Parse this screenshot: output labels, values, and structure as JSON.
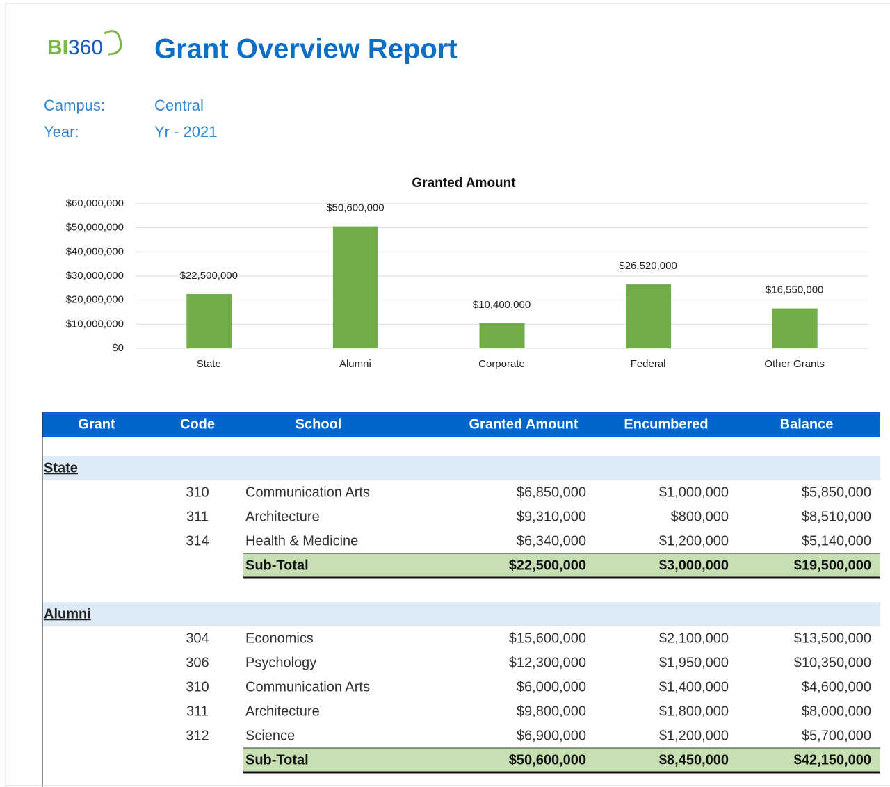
{
  "logo": [
    "BI",
    "360"
  ],
  "title": "Grant Overview Report",
  "filters": [
    {
      "label": "Campus:",
      "value": "Central"
    },
    {
      "label": "Year:",
      "value": "Yr - 2021"
    }
  ],
  "chart_data": {
    "type": "bar",
    "title": "Granted Amount",
    "categories": [
      "State",
      "Alumni",
      "Corporate",
      "Federal",
      "Other Grants"
    ],
    "values": [
      22500000,
      50600000,
      10400000,
      26520000,
      16550000
    ],
    "value_labels": [
      "$22,500,000",
      "$50,600,000",
      "$10,400,000",
      "$26,520,000",
      "$16,550,000"
    ],
    "color": "#70ad47",
    "ylim": [
      0,
      60000000
    ],
    "yticks": [
      {
        "value": 0,
        "label": "$0"
      },
      {
        "value": 10000000,
        "label": "$10,000,000"
      },
      {
        "value": 20000000,
        "label": "$20,000,000"
      },
      {
        "value": 30000000,
        "label": "$30,000,000"
      },
      {
        "value": 40000000,
        "label": "$40,000,000"
      },
      {
        "value": 50000000,
        "label": "$50,000,000"
      },
      {
        "value": 60000000,
        "label": "$60,000,000"
      }
    ],
    "grid": true
  },
  "table": {
    "columns": [
      "Grant",
      "Code",
      "School",
      "Granted Amount",
      "Encumbered",
      "Balance"
    ],
    "groups": [
      {
        "name": "State",
        "rows": [
          [
            "310",
            "Communication Arts",
            "$6,850,000",
            "$1,000,000",
            "$5,850,000"
          ],
          [
            "311",
            "Architecture",
            "$9,310,000",
            "$800,000",
            "$8,510,000"
          ],
          [
            "314",
            "Health & Medicine",
            "$6,340,000",
            "$1,200,000",
            "$5,140,000"
          ]
        ],
        "subtotal": [
          "Sub-Total",
          "$22,500,000",
          "$3,000,000",
          "$19,500,000"
        ]
      },
      {
        "name": "Alumni",
        "rows": [
          [
            "304",
            "Economics",
            "$15,600,000",
            "$2,100,000",
            "$13,500,000"
          ],
          [
            "306",
            "Psychology",
            "$12,300,000",
            "$1,950,000",
            "$10,350,000"
          ],
          [
            "310",
            "Communication Arts",
            "$6,000,000",
            "$1,400,000",
            "$4,600,000"
          ],
          [
            "311",
            "Architecture",
            "$9,800,000",
            "$1,800,000",
            "$8,000,000"
          ],
          [
            "312",
            "Science",
            "$6,900,000",
            "$1,200,000",
            "$5,700,000"
          ]
        ],
        "subtotal": [
          "Sub-Total",
          "$50,600,000",
          "$8,450,000",
          "$42,150,000"
        ]
      }
    ]
  }
}
